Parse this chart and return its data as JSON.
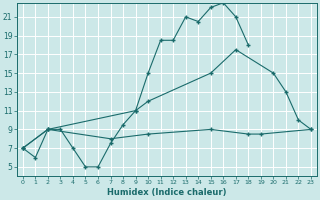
{
  "xlabel": "Humidex (Indice chaleur)",
  "bg_color": "#cce8e8",
  "line_color": "#1a6b6b",
  "grid_color": "#ffffff",
  "xlim": [
    -0.5,
    23.5
  ],
  "ylim": [
    4,
    22.5
  ],
  "xticks": [
    0,
    1,
    2,
    3,
    4,
    5,
    6,
    7,
    8,
    9,
    10,
    11,
    12,
    13,
    14,
    15,
    16,
    17,
    18,
    19,
    20,
    21,
    22,
    23
  ],
  "yticks": [
    5,
    7,
    9,
    11,
    13,
    15,
    17,
    19,
    21
  ],
  "line1_x": [
    0,
    1,
    2,
    3,
    4,
    5,
    6,
    7,
    8,
    9,
    10,
    11,
    12,
    13,
    14,
    15,
    16,
    17,
    18
  ],
  "line1_y": [
    7,
    6,
    9,
    9,
    7,
    5,
    5,
    7.5,
    9.5,
    11,
    15,
    18.5,
    18.5,
    21,
    20.5,
    22,
    22.5,
    21,
    18
  ],
  "line2_x": [
    0,
    2,
    9,
    10,
    15,
    17,
    20,
    21,
    22,
    23
  ],
  "line2_y": [
    7,
    9,
    11,
    12,
    15,
    17.5,
    15,
    13,
    10,
    9
  ],
  "line3_x": [
    0,
    2,
    7,
    10,
    15,
    18,
    19,
    23
  ],
  "line3_y": [
    7,
    9,
    8,
    8.5,
    9,
    8.5,
    8.5,
    9
  ]
}
